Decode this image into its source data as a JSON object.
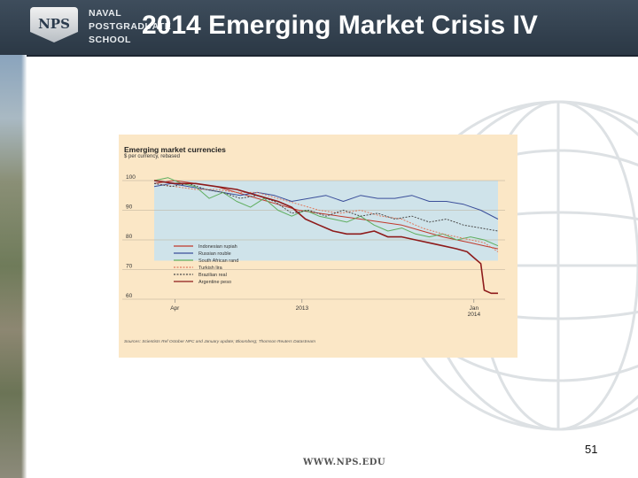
{
  "slide": {
    "title": "2014 Emerging Market Crisis IV",
    "logo_badge": "NPS",
    "logo_lines": [
      "NAVAL",
      "POSTGRADUATE",
      "SCHOOL"
    ],
    "footer_url": "WWW.NPS.EDU",
    "page_number": "51"
  },
  "colors": {
    "header": "#2f3d4b",
    "chart_bg": "#fbe7c6",
    "plot_bg": "#cfe3ea"
  },
  "chart_data": {
    "type": "line",
    "title": "Emerging market currencies",
    "subtitle": "$ per currency, rebased",
    "source": "Sources: Scientists Ref October NPC and January update; Bloomberg; Thomson Reuters Datastream",
    "ylim": [
      60,
      100
    ],
    "yticks": [
      100,
      90,
      80,
      70,
      60
    ],
    "x_range": [
      0,
      100
    ],
    "xticks": [
      {
        "x": 6,
        "label": "Apr"
      },
      {
        "x": 43,
        "label": "2013"
      },
      {
        "x": 93,
        "label": "Jan\n2014"
      }
    ],
    "grid": true,
    "legend_position": "center-left",
    "series": [
      {
        "name": "Indonesian rupiah",
        "color": "#c0392b",
        "dash": "",
        "points": [
          [
            0,
            99
          ],
          [
            6,
            100
          ],
          [
            12,
            99
          ],
          [
            18,
            98
          ],
          [
            24,
            96
          ],
          [
            30,
            94
          ],
          [
            36,
            92
          ],
          [
            42,
            90
          ],
          [
            48,
            89
          ],
          [
            54,
            88
          ],
          [
            60,
            87
          ],
          [
            66,
            86
          ],
          [
            72,
            85
          ],
          [
            78,
            83
          ],
          [
            84,
            81
          ],
          [
            88,
            80
          ],
          [
            92,
            79
          ],
          [
            96,
            78
          ],
          [
            100,
            77
          ]
        ]
      },
      {
        "name": "Russian rouble",
        "color": "#3b4f9a",
        "dash": "",
        "points": [
          [
            0,
            98
          ],
          [
            5,
            99
          ],
          [
            10,
            98
          ],
          [
            15,
            97
          ],
          [
            20,
            96
          ],
          [
            25,
            95
          ],
          [
            30,
            96
          ],
          [
            35,
            95
          ],
          [
            40,
            93
          ],
          [
            45,
            94
          ],
          [
            50,
            95
          ],
          [
            55,
            93
          ],
          [
            60,
            95
          ],
          [
            65,
            94
          ],
          [
            70,
            94
          ],
          [
            75,
            95
          ],
          [
            80,
            93
          ],
          [
            85,
            93
          ],
          [
            90,
            92
          ],
          [
            95,
            90
          ],
          [
            100,
            87
          ]
        ]
      },
      {
        "name": "South African rand",
        "color": "#5fae5f",
        "dash": "",
        "points": [
          [
            0,
            100
          ],
          [
            4,
            101
          ],
          [
            8,
            99
          ],
          [
            12,
            98
          ],
          [
            16,
            94
          ],
          [
            20,
            96
          ],
          [
            24,
            93
          ],
          [
            28,
            91
          ],
          [
            32,
            94
          ],
          [
            36,
            90
          ],
          [
            40,
            88
          ],
          [
            44,
            90
          ],
          [
            48,
            88
          ],
          [
            52,
            87
          ],
          [
            56,
            86
          ],
          [
            60,
            88
          ],
          [
            64,
            85
          ],
          [
            68,
            83
          ],
          [
            72,
            84
          ],
          [
            76,
            82
          ],
          [
            80,
            81
          ],
          [
            84,
            82
          ],
          [
            88,
            80
          ],
          [
            92,
            81
          ],
          [
            96,
            80
          ],
          [
            100,
            78
          ]
        ]
      },
      {
        "name": "Turkish lira",
        "color": "#e07a5f",
        "dash": "2,1.5",
        "points": [
          [
            0,
            99
          ],
          [
            6,
            98
          ],
          [
            12,
            97
          ],
          [
            18,
            97
          ],
          [
            24,
            96
          ],
          [
            30,
            96
          ],
          [
            36,
            94
          ],
          [
            42,
            92
          ],
          [
            48,
            90
          ],
          [
            54,
            89
          ],
          [
            60,
            90
          ],
          [
            66,
            88
          ],
          [
            72,
            87
          ],
          [
            78,
            84
          ],
          [
            84,
            82
          ],
          [
            88,
            81
          ],
          [
            92,
            80
          ],
          [
            96,
            79
          ],
          [
            100,
            76
          ]
        ]
      },
      {
        "name": "Brazilian real",
        "color": "#4a4a4a",
        "dash": "2,1.5",
        "points": [
          [
            0,
            99
          ],
          [
            5,
            98
          ],
          [
            10,
            99
          ],
          [
            15,
            97
          ],
          [
            20,
            96
          ],
          [
            25,
            94
          ],
          [
            30,
            95
          ],
          [
            35,
            93
          ],
          [
            40,
            89
          ],
          [
            45,
            90
          ],
          [
            50,
            88
          ],
          [
            55,
            90
          ],
          [
            60,
            88
          ],
          [
            65,
            89
          ],
          [
            70,
            87
          ],
          [
            75,
            88
          ],
          [
            80,
            86
          ],
          [
            85,
            87
          ],
          [
            90,
            85
          ],
          [
            95,
            84
          ],
          [
            100,
            83
          ]
        ]
      },
      {
        "name": "Argentine peso",
        "color": "#8e1b1b",
        "dash": "",
        "points": [
          [
            0,
            100
          ],
          [
            6,
            99
          ],
          [
            12,
            99
          ],
          [
            18,
            98
          ],
          [
            24,
            97
          ],
          [
            30,
            95
          ],
          [
            36,
            93
          ],
          [
            40,
            91
          ],
          [
            44,
            87
          ],
          [
            48,
            85
          ],
          [
            52,
            83
          ],
          [
            56,
            82
          ],
          [
            60,
            82
          ],
          [
            64,
            83
          ],
          [
            68,
            81
          ],
          [
            72,
            81
          ],
          [
            76,
            80
          ],
          [
            80,
            79
          ],
          [
            84,
            78
          ],
          [
            88,
            77
          ],
          [
            91,
            76
          ],
          [
            93,
            74
          ],
          [
            95,
            72
          ],
          [
            96,
            63
          ],
          [
            98,
            62
          ],
          [
            100,
            62
          ]
        ]
      }
    ]
  }
}
